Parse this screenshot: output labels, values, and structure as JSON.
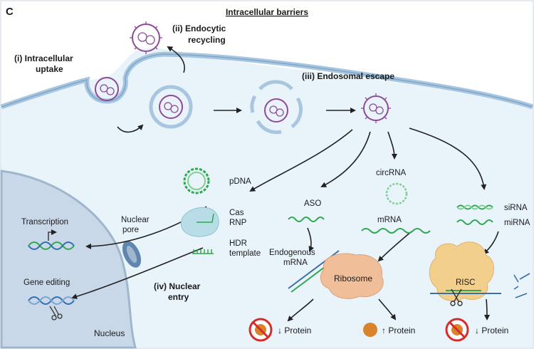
{
  "panel_letter": "C",
  "title": "Intracellular barriers",
  "steps": {
    "uptake": [
      "(i) Intracellular",
      "uptake"
    ],
    "recycling": [
      "(ii) Endocytic",
      "recycling"
    ],
    "escape": "(iii) Endosomal escape",
    "nuclear": [
      "(iv) Nuclear",
      "entry"
    ]
  },
  "cargo": {
    "pdna": "pDNA",
    "cas": [
      "Cas",
      "RNP"
    ],
    "hdr": [
      "HDR",
      "template"
    ],
    "aso": "ASO",
    "circrna": "circRNA",
    "mrna": "mRNA",
    "sirna": "siRNA",
    "mirna": "miRNA",
    "endogenous": [
      "Endogenous",
      "mRNA"
    ]
  },
  "labels": {
    "nuclear_pore": [
      "Nuclear",
      "pore"
    ],
    "transcription": "Transcription",
    "gene_editing": "Gene editing",
    "nucleus": "Nucleus",
    "ribosome": "Ribosome",
    "risc": "RISC"
  },
  "outcomes": {
    "aso": "↓ Protein",
    "mrna": "↑ Protein",
    "sirna": "↓ Protein"
  },
  "colors": {
    "background": "#e9f3fa",
    "membrane": "#a8c6e0",
    "nucleus": "#c9d8e8",
    "vesicle": "#8e4b9a",
    "rna_green": "#2fa84f",
    "dna_blue": "#2f6fb0",
    "ribosome": "#f0bf9a",
    "risc": "#f3cf8e",
    "forbid": "#d62c2c",
    "protein": "#d9832a"
  }
}
